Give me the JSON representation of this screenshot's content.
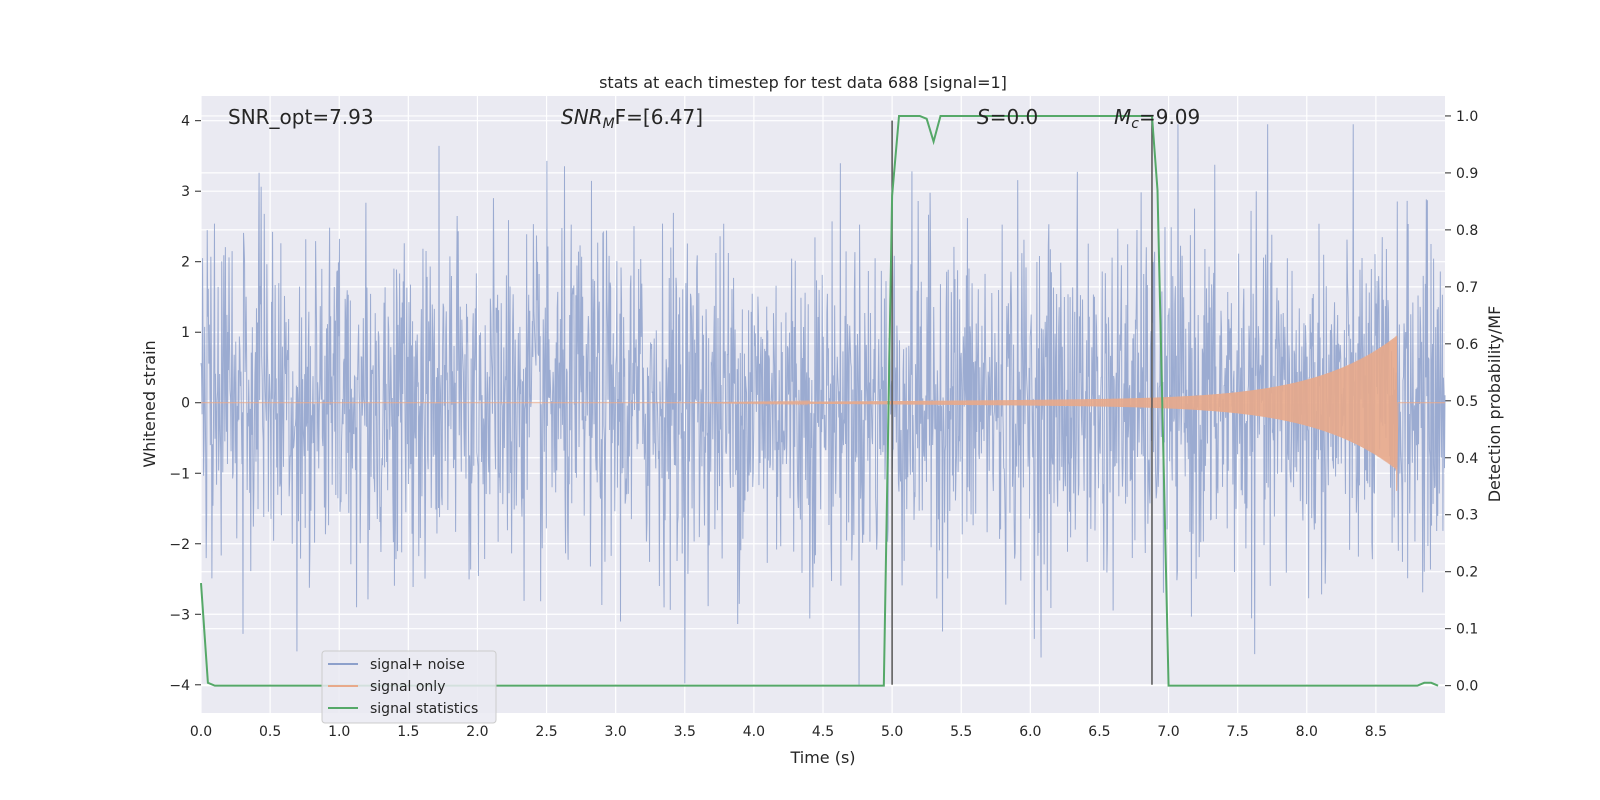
{
  "chart_data": {
    "type": "line",
    "title": "stats at each timestep for test data 688 [signal=1]",
    "xlabel": "Time (s)",
    "ylabel": "Whitened strain",
    "y2label": "Detection probability/MF",
    "xlim": [
      0.0,
      9.0
    ],
    "ylim": [
      -4.4,
      4.35
    ],
    "y2lim": [
      -0.048,
      1.035
    ],
    "x_ticks": [
      "0.0",
      "0.5",
      "1.0",
      "1.5",
      "2.0",
      "2.5",
      "3.0",
      "3.5",
      "4.0",
      "4.5",
      "5.0",
      "5.5",
      "6.0",
      "6.5",
      "7.0",
      "7.5",
      "8.0",
      "8.5"
    ],
    "y_ticks": [
      "4",
      "3",
      "2",
      "1",
      "0",
      "−1",
      "−2",
      "−3",
      "−4"
    ],
    "y2_ticks": [
      "1.0",
      "0.9",
      "0.8",
      "0.7",
      "0.6",
      "0.5",
      "0.4",
      "0.3",
      "0.2",
      "0.1",
      "0.0"
    ],
    "grid": true,
    "legend_position": "lower-left",
    "colors": {
      "background": "#eaeaf2",
      "grid": "#ffffff",
      "signal_noise": "#8da0cb",
      "signal_only": "#dd8452",
      "statistics": "#55a868",
      "vlines": "#555555"
    },
    "annotations": {
      "snr_opt": "SNR_opt=7.93",
      "snr_mf_main": "SNR",
      "snr_mf_sub": "M",
      "snr_mf_tail": "F=[6.47]",
      "s_main": "S",
      "s_tail": "=0.0",
      "mc_main": "M",
      "mc_sub": "c",
      "mc_tail": "=9.09"
    },
    "series": [
      {
        "name": "signal+ noise",
        "description_stats": {
          "sigma": 1.0,
          "t_range": [
            0.0,
            9.0
          ]
        }
      },
      {
        "name": "signal only",
        "chirp": {
          "start_amp": 0.0,
          "end_amp": 0.95,
          "t_start": 3.5,
          "t_end": 8.65
        }
      },
      {
        "name": "signal statistics",
        "x": [
          0.0,
          0.05,
          0.1,
          0.15,
          0.5,
          1.0,
          2.0,
          3.0,
          3.6,
          4.0,
          4.5,
          4.94,
          5.0,
          5.05,
          5.1,
          5.15,
          5.2,
          5.25,
          5.3,
          5.35,
          5.4,
          5.5,
          6.0,
          6.5,
          6.88,
          6.92,
          7.0,
          7.05,
          7.5,
          8.0,
          8.5,
          8.8,
          8.85,
          8.9,
          8.95
        ],
        "values": [
          0.18,
          0.005,
          0.0,
          0.0,
          0.0,
          0.0,
          0.0,
          0.0,
          0.0,
          0.0,
          0.0,
          0.0,
          0.86,
          1.0,
          1.0,
          1.0,
          1.0,
          0.995,
          0.955,
          1.0,
          1.0,
          1.0,
          1.0,
          1.0,
          1.0,
          0.87,
          0.0,
          0.0,
          0.0,
          0.0,
          0.0,
          0.0,
          0.005,
          0.005,
          0.0
        ]
      }
    ],
    "vlines": [
      5.0,
      6.88
    ],
    "vline_range": [
      -4.0,
      4.0
    ]
  },
  "legend": {
    "items": [
      "signal+ noise",
      "signal only",
      "signal statistics"
    ]
  }
}
